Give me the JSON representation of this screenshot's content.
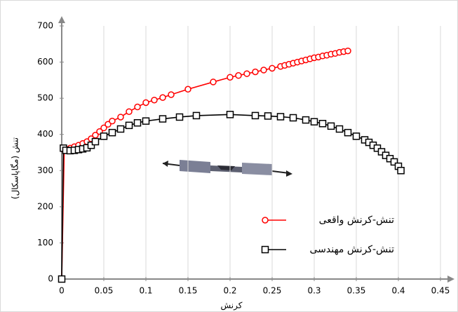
{
  "chart_data": {
    "type": "line",
    "xlabel": "کرنش",
    "ylabel": "تنش (مگاپاسکال)",
    "xlim": [
      0,
      0.45
    ],
    "xticks": [
      0,
      0.05,
      0.1,
      0.15,
      0.2,
      0.25,
      0.3,
      0.35,
      0.4,
      0.45
    ],
    "ylim": [
      0,
      700
    ],
    "yticks": [
      0,
      100,
      200,
      300,
      400,
      500,
      600,
      700
    ],
    "grid": "x",
    "series": [
      {
        "name": "تنش-کرنش واقعی",
        "color": "#ff0000",
        "marker": "circle",
        "x": [
          0,
          0.003,
          0.01,
          0.015,
          0.02,
          0.025,
          0.03,
          0.035,
          0.04,
          0.045,
          0.05,
          0.055,
          0.06,
          0.07,
          0.08,
          0.09,
          0.1,
          0.11,
          0.12,
          0.13,
          0.15,
          0.18,
          0.2,
          0.21,
          0.22,
          0.23,
          0.24,
          0.25,
          0.26,
          0.265,
          0.27,
          0.275,
          0.28,
          0.285,
          0.29,
          0.295,
          0.3,
          0.305,
          0.31,
          0.315,
          0.32,
          0.325,
          0.33,
          0.335,
          0.34
        ],
        "values": [
          0,
          358,
          362,
          366,
          370,
          375,
          380,
          388,
          398,
          408,
          418,
          428,
          437,
          448,
          463,
          476,
          488,
          495,
          502,
          510,
          525,
          545,
          558,
          563,
          568,
          573,
          578,
          583,
          588,
          591,
          594,
          597,
          600,
          603,
          606,
          609,
          612,
          614,
          617,
          619,
          622,
          624,
          627,
          629,
          631
        ]
      },
      {
        "name": "تنش-کرنش مهندسی",
        "color": "#000000",
        "marker": "square",
        "x": [
          0,
          0.002,
          0.005,
          0.01,
          0.015,
          0.02,
          0.025,
          0.03,
          0.035,
          0.04,
          0.05,
          0.06,
          0.07,
          0.08,
          0.09,
          0.1,
          0.12,
          0.14,
          0.16,
          0.2,
          0.23,
          0.245,
          0.26,
          0.275,
          0.29,
          0.3,
          0.31,
          0.32,
          0.33,
          0.34,
          0.35,
          0.36,
          0.365,
          0.37,
          0.375,
          0.38,
          0.385,
          0.39,
          0.395,
          0.4,
          0.403
        ],
        "values": [
          0,
          362,
          356,
          355,
          356,
          358,
          360,
          363,
          370,
          380,
          395,
          405,
          415,
          425,
          432,
          437,
          443,
          448,
          452,
          455,
          452,
          451,
          449,
          446,
          440,
          435,
          430,
          423,
          415,
          405,
          395,
          385,
          378,
          370,
          362,
          352,
          342,
          333,
          324,
          312,
          300
        ]
      }
    ]
  }
}
